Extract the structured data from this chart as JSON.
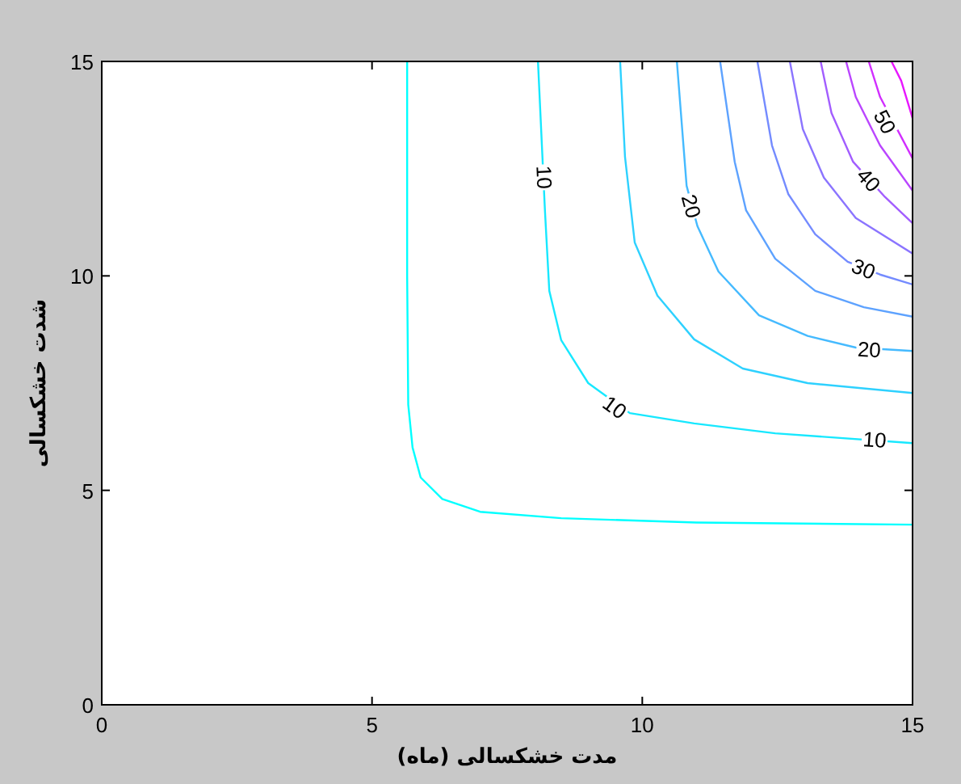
{
  "chart_data": {
    "type": "line",
    "xlabel": "مدت خشکسالی (ماه)",
    "ylabel": "شدت خشکسالی",
    "xlim": [
      0,
      15
    ],
    "ylim": [
      0,
      15
    ],
    "xticks": [
      0,
      5,
      10,
      15
    ],
    "yticks": [
      0,
      5,
      10,
      15
    ],
    "series": [
      {
        "color": "#00ffff",
        "x": [
          5.65,
          5.65,
          5.67,
          5.75,
          5.9,
          6.3,
          7,
          8.5,
          11,
          15
        ],
        "values": [
          15,
          10,
          7,
          6,
          5.3,
          4.8,
          4.5,
          4.35,
          4.25,
          4.2
        ]
      },
      {
        "color": "#17e8ff",
        "x": [
          8.07,
          8.2,
          8.28,
          8.5,
          9.0,
          9.77,
          10.96,
          12.46,
          15
        ],
        "values": [
          15,
          11.5,
          9.65,
          8.5,
          7.5,
          6.8,
          6.56,
          6.33,
          6.1
        ]
      },
      {
        "color": "#2ed1ff",
        "x": [
          9.59,
          9.68,
          9.86,
          10.28,
          10.96,
          11.86,
          13.06,
          15
        ],
        "values": [
          15,
          12.78,
          10.78,
          9.54,
          8.52,
          7.84,
          7.5,
          7.27
        ]
      },
      {
        "color": "#45baff",
        "x": [
          10.64,
          10.82,
          11.02,
          11.41,
          12.16,
          13.06,
          13.95,
          15
        ],
        "values": [
          15,
          12.1,
          11.16,
          10.1,
          9.08,
          8.6,
          8.33,
          8.25
        ]
      },
      {
        "color": "#5da2ff",
        "x": [
          11.44,
          11.71,
          11.92,
          12.46,
          13.2,
          14.1,
          15
        ],
        "values": [
          15,
          12.66,
          11.53,
          10.4,
          9.65,
          9.27,
          9.05
        ]
      },
      {
        "color": "#748bff",
        "x": [
          12.13,
          12.4,
          12.7,
          13.2,
          13.8,
          14.4,
          15
        ],
        "values": [
          15,
          13.04,
          11.91,
          10.97,
          10.33,
          10.03,
          9.8
        ]
      },
      {
        "color": "#8b74ff",
        "x": [
          12.73,
          12.97,
          13.36,
          13.95,
          15
        ],
        "values": [
          15,
          13.42,
          12.29,
          11.35,
          10.52
        ]
      },
      {
        "color": "#a25dff",
        "x": [
          13.3,
          13.5,
          13.9,
          14.49,
          15
        ],
        "values": [
          15,
          13.8,
          12.66,
          11.84,
          11.23
        ]
      },
      {
        "color": "#ba45ff",
        "x": [
          13.77,
          13.95,
          14.4,
          15
        ],
        "values": [
          15,
          14.17,
          13.04,
          11.99
        ]
      },
      {
        "color": "#d12eff",
        "x": [
          14.19,
          14.4,
          15
        ],
        "values": [
          15,
          14.17,
          12.74
        ]
      },
      {
        "color": "#e817ff",
        "x": [
          14.61,
          14.79,
          15
        ],
        "values": [
          15,
          14.55,
          13.68
        ]
      }
    ],
    "annotations": [
      {
        "text": "10",
        "x": 8.2,
        "y": 12.3
      },
      {
        "text": "10",
        "x": 9.5,
        "y": 6.95
      },
      {
        "text": "10",
        "x": 14.3,
        "y": 6.2
      },
      {
        "text": "20",
        "x": 10.92,
        "y": 11.63
      },
      {
        "text": "20",
        "x": 14.2,
        "y": 8.3
      },
      {
        "text": "30",
        "x": 14.1,
        "y": 10.18
      },
      {
        "text": "40",
        "x": 14.2,
        "y": 12.25
      },
      {
        "text": "50",
        "x": 14.5,
        "y": 13.6
      }
    ]
  }
}
